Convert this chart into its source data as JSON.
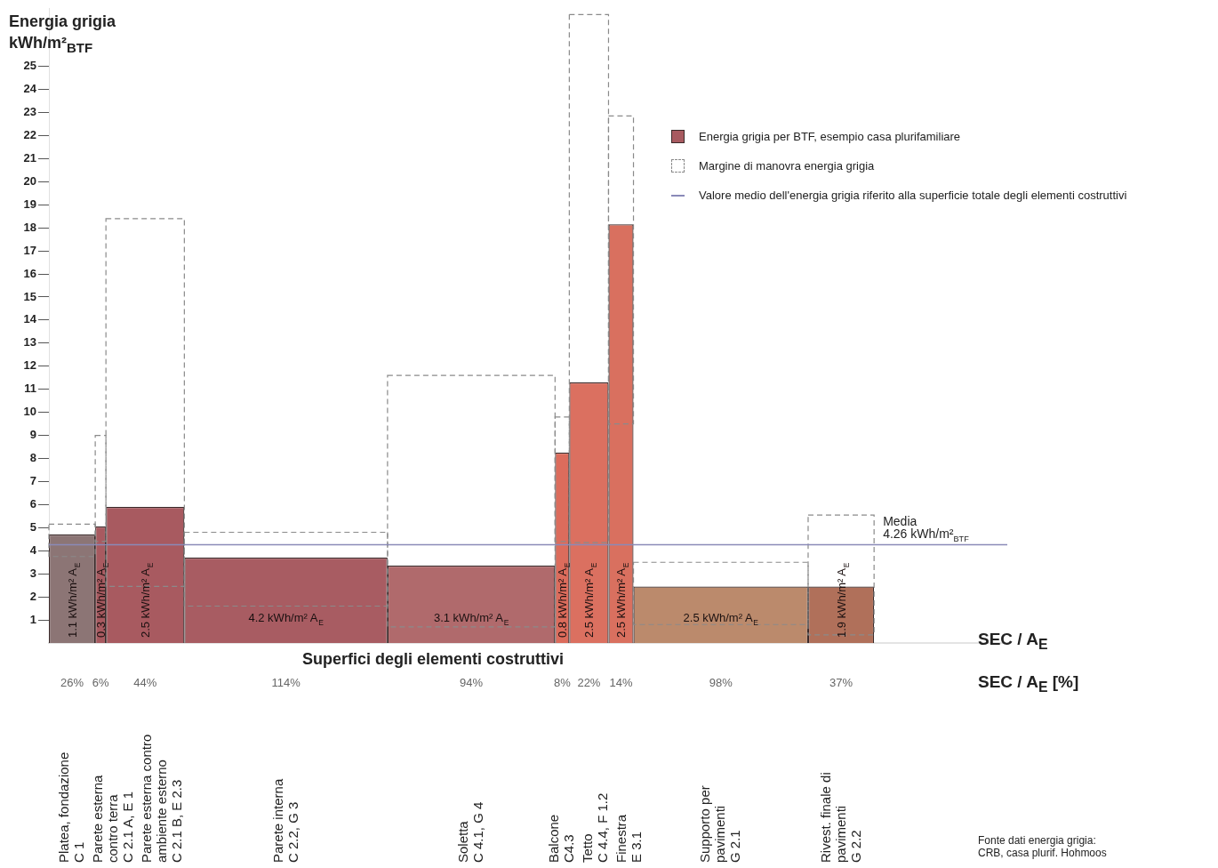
{
  "chart_data": {
    "type": "bar",
    "ylabel": "Energia grigia\nkWh/m²$_{BTF}$",
    "xlabel": "Superfici degli elementi costruttivi",
    "categories": [
      "Platea, fondazione\nC 1",
      "Parete esterna\ncontro terra\nC 2.1 A, E 1",
      "Parete esterna contro\nambiente esterno\nC 2.1 B, E 2.3",
      "Parete interna\nC 2.2, G 3",
      "Soletta\nC 4.1, G 4",
      "Balcone\nC4.3",
      "Tetto\nC 4.4, F 1.2",
      "Finestra\nE 3.1",
      "Supporto per\npavimenti\nG 2.1",
      "Rivest. finale di\npavimenti\nG 2.2"
    ],
    "series": [
      {
        "name": "Energia grigia per BTF, esempio casa plurifamiliare",
        "colors": [
          "#8c7575",
          "#a85a60",
          "#a85a60",
          "#a85c62",
          "#b06a6c",
          "#dc6c5c",
          "#db7060",
          "#d9705f",
          "#bb8a6c",
          "#b0705a"
        ],
        "values": [
          4.7,
          5.05,
          5.9,
          3.7,
          3.35,
          8.25,
          11.3,
          18.15,
          2.45,
          2.45
        ]
      },
      {
        "name": "Margine di manovra energia grigia",
        "color": "#8a8a8a",
        "base": [
          3.75,
          4.4,
          2.45,
          1.6,
          0.7,
          4.4,
          4.35,
          9.5,
          0.8,
          0.35
        ],
        "values": [
          1.4,
          4.6,
          15.95,
          3.2,
          10.9,
          5.4,
          22.9,
          13.35,
          2.7,
          5.2
        ]
      }
    ],
    "ref_lines": [
      {
        "axis": "y",
        "value": 4.26,
        "label": "Media\n4.26 kWh/m²$_{BTF}$",
        "color": "#8a8ab8"
      }
    ],
    "ylim": [
      0,
      27.5
    ],
    "yticks": [
      1,
      2,
      3,
      4,
      5,
      6,
      7,
      8,
      9,
      10,
      11,
      12,
      13,
      14,
      15,
      16,
      17,
      18,
      19,
      20,
      21,
      22,
      23,
      24,
      25
    ],
    "grid": false,
    "legend": "top right",
    "annotations": [
      "SEC / A$_{E}$",
      "SEC / A$_{E}$ [%]",
      "Fonte dati energia grigia:\nCRB, casa plurif. Hohmoos",
      "26%",
      "6%",
      "44%",
      "114%",
      "94%",
      "8%",
      "22%",
      "14%",
      "98%",
      "37%",
      "1.1 kWh/m² A$_{E}$",
      "0.3 kWh/m² A$_{E}$",
      "2.5 kWh/m² A$_{E}$",
      "4.2 kWh/m² A$_{E}$",
      "3.1 kWh/m² A$_{E}$",
      "0.8 kWh/m² A$_{E}$",
      "2.5 kWh/m² A$_{E}$",
      "2.5 kWh/m² A$_{E}$",
      "2.5 kWh/m² A$_{E}$",
      "1.9 kWh/m² A$_{E}$",
      "Valore medio dell'energia grigia riferito alla superficie totale degli elementi costruttivi"
    ]
  }
}
